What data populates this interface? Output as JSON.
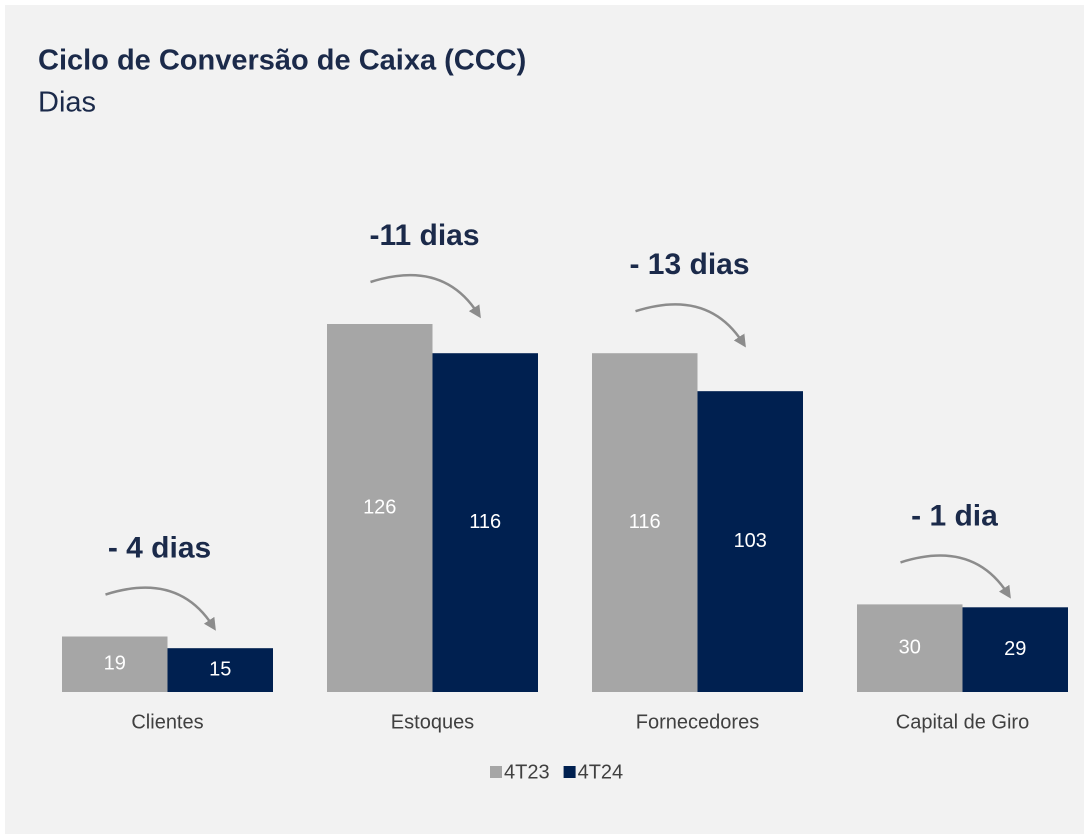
{
  "chart_data": {
    "type": "bar",
    "title": "Ciclo de Conversão de Caixa (CCC)",
    "subtitle": "Dias",
    "categories": [
      "Clientes",
      "Estoques",
      "Fornecedores",
      "Capital de Giro"
    ],
    "series": [
      {
        "name": "4T23",
        "color": "#a6a6a6",
        "values": [
          19,
          126,
          116,
          30
        ]
      },
      {
        "name": "4T24",
        "color": "#002050",
        "values": [
          15,
          116,
          103,
          29
        ]
      }
    ],
    "annotations": [
      "- 4 dias",
      "-11 dias",
      "- 13 dias",
      "- 1 dia"
    ],
    "legend": "bottom"
  }
}
